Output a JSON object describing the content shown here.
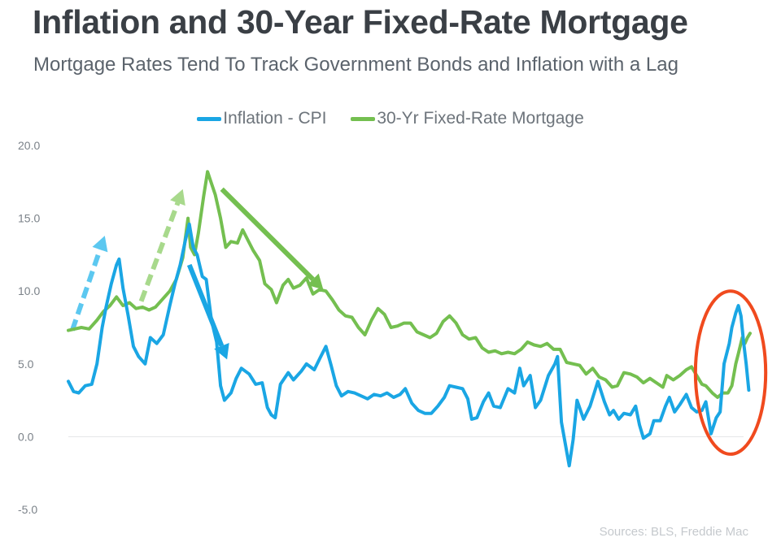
{
  "header": {
    "title": "Inflation and 30-Year Fixed-Rate Mortgage",
    "subtitle": "Mortgage Rates Tend To Track Government Bonds and Inflation with a Lag"
  },
  "footer": {
    "source": "Sources: BLS, Freddie Mac"
  },
  "colors": {
    "inflation": "#1aa6e4",
    "mortgage": "#74bf50",
    "highlight": "#f04a1e",
    "arrow_light_blue": "#5cc8f0",
    "arrow_light_green": "#a8d98c"
  },
  "chart_data": {
    "type": "line",
    "title": "Inflation and 30-Year Fixed-Rate Mortgage",
    "subtitle": "Mortgage Rates Tend To Track Government Bonds and Inflation with a Lag",
    "ylim": [
      -5,
      20
    ],
    "yticks": [
      "20.0",
      "15.0",
      "10.0",
      "5.0",
      "0.0",
      "-5.0"
    ],
    "ytick_values": [
      20,
      15,
      10,
      5,
      0,
      -5
    ],
    "xlim": [
      1971,
      2022.9
    ],
    "grid": false,
    "legend": "top-center",
    "series": [
      {
        "name": "Inflation - CPI",
        "color": "#1aa6e4",
        "points": [
          [
            1971.0,
            3.8
          ],
          [
            1971.4,
            3.1
          ],
          [
            1971.8,
            3.0
          ],
          [
            1972.3,
            3.5
          ],
          [
            1972.8,
            3.6
          ],
          [
            1973.2,
            5.0
          ],
          [
            1973.6,
            7.5
          ],
          [
            1973.9,
            8.9
          ],
          [
            1974.3,
            10.5
          ],
          [
            1974.7,
            11.8
          ],
          [
            1974.9,
            12.2
          ],
          [
            1975.2,
            10.2
          ],
          [
            1975.6,
            8.3
          ],
          [
            1976.0,
            6.2
          ],
          [
            1976.4,
            5.5
          ],
          [
            1976.9,
            5.0
          ],
          [
            1977.3,
            6.8
          ],
          [
            1977.8,
            6.4
          ],
          [
            1978.3,
            7.0
          ],
          [
            1978.8,
            9.0
          ],
          [
            1979.2,
            10.5
          ],
          [
            1979.6,
            11.8
          ],
          [
            1980.0,
            13.5
          ],
          [
            1980.3,
            14.6
          ],
          [
            1980.6,
            13.0
          ],
          [
            1980.9,
            12.5
          ],
          [
            1981.3,
            11.0
          ],
          [
            1981.6,
            10.8
          ],
          [
            1982.0,
            8.0
          ],
          [
            1982.4,
            6.5
          ],
          [
            1982.7,
            3.5
          ],
          [
            1983.0,
            2.5
          ],
          [
            1983.5,
            3.0
          ],
          [
            1983.9,
            4.0
          ],
          [
            1984.3,
            4.7
          ],
          [
            1984.9,
            4.3
          ],
          [
            1985.4,
            3.6
          ],
          [
            1985.9,
            3.7
          ],
          [
            1986.3,
            2.0
          ],
          [
            1986.6,
            1.5
          ],
          [
            1986.9,
            1.3
          ],
          [
            1987.3,
            3.6
          ],
          [
            1987.9,
            4.4
          ],
          [
            1988.3,
            3.9
          ],
          [
            1988.9,
            4.5
          ],
          [
            1989.3,
            5.0
          ],
          [
            1989.9,
            4.6
          ],
          [
            1990.4,
            5.5
          ],
          [
            1990.8,
            6.2
          ],
          [
            1991.2,
            4.9
          ],
          [
            1991.6,
            3.5
          ],
          [
            1992.0,
            2.8
          ],
          [
            1992.5,
            3.1
          ],
          [
            1993.0,
            3.0
          ],
          [
            1993.5,
            2.8
          ],
          [
            1994.0,
            2.6
          ],
          [
            1994.5,
            2.9
          ],
          [
            1995.0,
            2.8
          ],
          [
            1995.5,
            3.0
          ],
          [
            1996.0,
            2.7
          ],
          [
            1996.5,
            2.9
          ],
          [
            1996.9,
            3.3
          ],
          [
            1997.4,
            2.3
          ],
          [
            1997.9,
            1.8
          ],
          [
            1998.4,
            1.6
          ],
          [
            1998.9,
            1.6
          ],
          [
            1999.4,
            2.1
          ],
          [
            1999.9,
            2.7
          ],
          [
            2000.3,
            3.5
          ],
          [
            2000.8,
            3.4
          ],
          [
            2001.3,
            3.3
          ],
          [
            2001.7,
            2.6
          ],
          [
            2002.0,
            1.2
          ],
          [
            2002.4,
            1.3
          ],
          [
            2002.9,
            2.4
          ],
          [
            2003.3,
            3.0
          ],
          [
            2003.7,
            2.1
          ],
          [
            2004.2,
            2.0
          ],
          [
            2004.8,
            3.3
          ],
          [
            2005.3,
            3.0
          ],
          [
            2005.7,
            4.7
          ],
          [
            2006.0,
            3.5
          ],
          [
            2006.5,
            4.2
          ],
          [
            2006.9,
            2.0
          ],
          [
            2007.3,
            2.5
          ],
          [
            2007.9,
            4.2
          ],
          [
            2008.4,
            5.0
          ],
          [
            2008.6,
            5.5
          ],
          [
            2008.9,
            1.0
          ],
          [
            2009.2,
            -0.5
          ],
          [
            2009.5,
            -2.0
          ],
          [
            2009.8,
            -0.2
          ],
          [
            2010.1,
            2.5
          ],
          [
            2010.6,
            1.2
          ],
          [
            2011.1,
            2.1
          ],
          [
            2011.7,
            3.8
          ],
          [
            2012.2,
            2.4
          ],
          [
            2012.6,
            1.5
          ],
          [
            2012.9,
            1.8
          ],
          [
            2013.3,
            1.2
          ],
          [
            2013.7,
            1.6
          ],
          [
            2014.2,
            1.5
          ],
          [
            2014.6,
            2.1
          ],
          [
            2014.9,
            0.8
          ],
          [
            2015.2,
            -0.1
          ],
          [
            2015.7,
            0.2
          ],
          [
            2016.0,
            1.1
          ],
          [
            2016.5,
            1.1
          ],
          [
            2016.9,
            2.1
          ],
          [
            2017.2,
            2.7
          ],
          [
            2017.6,
            1.7
          ],
          [
            2018.0,
            2.2
          ],
          [
            2018.5,
            2.9
          ],
          [
            2018.9,
            2.0
          ],
          [
            2019.3,
            1.7
          ],
          [
            2019.7,
            1.8
          ],
          [
            2020.0,
            2.4
          ],
          [
            2020.4,
            0.2
          ],
          [
            2020.8,
            1.3
          ],
          [
            2021.1,
            1.7
          ],
          [
            2021.4,
            5.0
          ],
          [
            2021.8,
            6.4
          ],
          [
            2022.0,
            7.5
          ],
          [
            2022.3,
            8.5
          ],
          [
            2022.5,
            9.0
          ],
          [
            2022.7,
            8.3
          ],
          [
            2022.9,
            6.5
          ],
          [
            2023.1,
            5.0
          ],
          [
            2023.3,
            3.2
          ]
        ]
      },
      {
        "name": "30-Yr Fixed-Rate Mortgage",
        "color": "#74bf50",
        "points": [
          [
            1971.0,
            7.3
          ],
          [
            1971.5,
            7.4
          ],
          [
            1972.0,
            7.5
          ],
          [
            1972.6,
            7.4
          ],
          [
            1973.2,
            8.0
          ],
          [
            1973.7,
            8.6
          ],
          [
            1974.2,
            9.0
          ],
          [
            1974.7,
            9.6
          ],
          [
            1975.2,
            9.0
          ],
          [
            1975.7,
            9.2
          ],
          [
            1976.2,
            8.8
          ],
          [
            1976.7,
            8.9
          ],
          [
            1977.2,
            8.7
          ],
          [
            1977.7,
            8.9
          ],
          [
            1978.3,
            9.5
          ],
          [
            1978.8,
            10.0
          ],
          [
            1979.3,
            10.8
          ],
          [
            1979.8,
            12.3
          ],
          [
            1980.2,
            15.0
          ],
          [
            1980.4,
            13.0
          ],
          [
            1980.7,
            12.5
          ],
          [
            1981.0,
            14.0
          ],
          [
            1981.4,
            16.5
          ],
          [
            1981.7,
            18.2
          ],
          [
            1982.0,
            17.4
          ],
          [
            1982.3,
            16.6
          ],
          [
            1982.7,
            15.0
          ],
          [
            1983.1,
            13.0
          ],
          [
            1983.5,
            13.4
          ],
          [
            1984.0,
            13.3
          ],
          [
            1984.4,
            14.2
          ],
          [
            1984.8,
            13.5
          ],
          [
            1985.2,
            12.8
          ],
          [
            1985.7,
            12.1
          ],
          [
            1986.1,
            10.5
          ],
          [
            1986.6,
            10.1
          ],
          [
            1987.0,
            9.2
          ],
          [
            1987.5,
            10.4
          ],
          [
            1987.9,
            10.8
          ],
          [
            1988.3,
            10.2
          ],
          [
            1988.8,
            10.4
          ],
          [
            1989.3,
            10.9
          ],
          [
            1989.8,
            9.8
          ],
          [
            1990.3,
            10.1
          ],
          [
            1990.8,
            10.0
          ],
          [
            1991.3,
            9.4
          ],
          [
            1991.8,
            8.7
          ],
          [
            1992.3,
            8.3
          ],
          [
            1992.8,
            8.2
          ],
          [
            1993.3,
            7.5
          ],
          [
            1993.8,
            7.0
          ],
          [
            1994.3,
            8.0
          ],
          [
            1994.8,
            8.8
          ],
          [
            1995.3,
            8.4
          ],
          [
            1995.8,
            7.5
          ],
          [
            1996.3,
            7.6
          ],
          [
            1996.8,
            7.8
          ],
          [
            1997.3,
            7.8
          ],
          [
            1997.8,
            7.2
          ],
          [
            1998.3,
            7.0
          ],
          [
            1998.8,
            6.8
          ],
          [
            1999.3,
            7.1
          ],
          [
            1999.8,
            7.9
          ],
          [
            2000.3,
            8.3
          ],
          [
            2000.8,
            7.8
          ],
          [
            2001.3,
            7.0
          ],
          [
            2001.8,
            6.7
          ],
          [
            2002.3,
            6.8
          ],
          [
            2002.8,
            6.1
          ],
          [
            2003.3,
            5.8
          ],
          [
            2003.8,
            5.9
          ],
          [
            2004.3,
            5.7
          ],
          [
            2004.8,
            5.8
          ],
          [
            2005.3,
            5.7
          ],
          [
            2005.8,
            6.0
          ],
          [
            2006.3,
            6.5
          ],
          [
            2006.8,
            6.3
          ],
          [
            2007.3,
            6.2
          ],
          [
            2007.8,
            6.4
          ],
          [
            2008.3,
            6.0
          ],
          [
            2008.8,
            6.0
          ],
          [
            2009.3,
            5.1
          ],
          [
            2009.8,
            5.0
          ],
          [
            2010.3,
            4.9
          ],
          [
            2010.8,
            4.3
          ],
          [
            2011.3,
            4.7
          ],
          [
            2011.8,
            4.1
          ],
          [
            2012.3,
            3.9
          ],
          [
            2012.8,
            3.4
          ],
          [
            2013.2,
            3.5
          ],
          [
            2013.7,
            4.4
          ],
          [
            2014.2,
            4.3
          ],
          [
            2014.7,
            4.1
          ],
          [
            2015.2,
            3.7
          ],
          [
            2015.7,
            4.0
          ],
          [
            2016.2,
            3.7
          ],
          [
            2016.7,
            3.4
          ],
          [
            2017.0,
            4.2
          ],
          [
            2017.5,
            3.9
          ],
          [
            2018.0,
            4.2
          ],
          [
            2018.5,
            4.6
          ],
          [
            2018.9,
            4.8
          ],
          [
            2019.3,
            4.2
          ],
          [
            2019.7,
            3.6
          ],
          [
            2020.0,
            3.5
          ],
          [
            2020.5,
            3.0
          ],
          [
            2020.9,
            2.7
          ],
          [
            2021.3,
            3.0
          ],
          [
            2021.7,
            3.0
          ],
          [
            2022.0,
            3.5
          ],
          [
            2022.3,
            5.0
          ],
          [
            2022.5,
            5.7
          ],
          [
            2022.8,
            6.8
          ],
          [
            2023.0,
            6.4
          ],
          [
            2023.2,
            6.8
          ],
          [
            2023.4,
            7.1
          ]
        ]
      }
    ],
    "annotations": [
      {
        "kind": "dashed-arrow",
        "color": "#5cc8f0",
        "from": [
          1971.3,
          7.3
        ],
        "to": [
          1973.8,
          13.8
        ]
      },
      {
        "kind": "dashed-arrow",
        "color": "#a8d98c",
        "from": [
          1976.6,
          9.3
        ],
        "to": [
          1979.8,
          17.0
        ]
      },
      {
        "kind": "arrow",
        "color": "#1aa6e4",
        "from": [
          1980.3,
          11.8
        ],
        "to": [
          1983.2,
          5.3
        ]
      },
      {
        "kind": "arrow",
        "color": "#74bf50",
        "from": [
          1982.8,
          17.0
        ],
        "to": [
          1990.6,
          10.1
        ]
      },
      {
        "kind": "ellipse",
        "color": "#f04a1e",
        "center": [
          2021.9,
          4.4
        ],
        "radii": [
          2.7,
          5.6
        ]
      }
    ]
  }
}
